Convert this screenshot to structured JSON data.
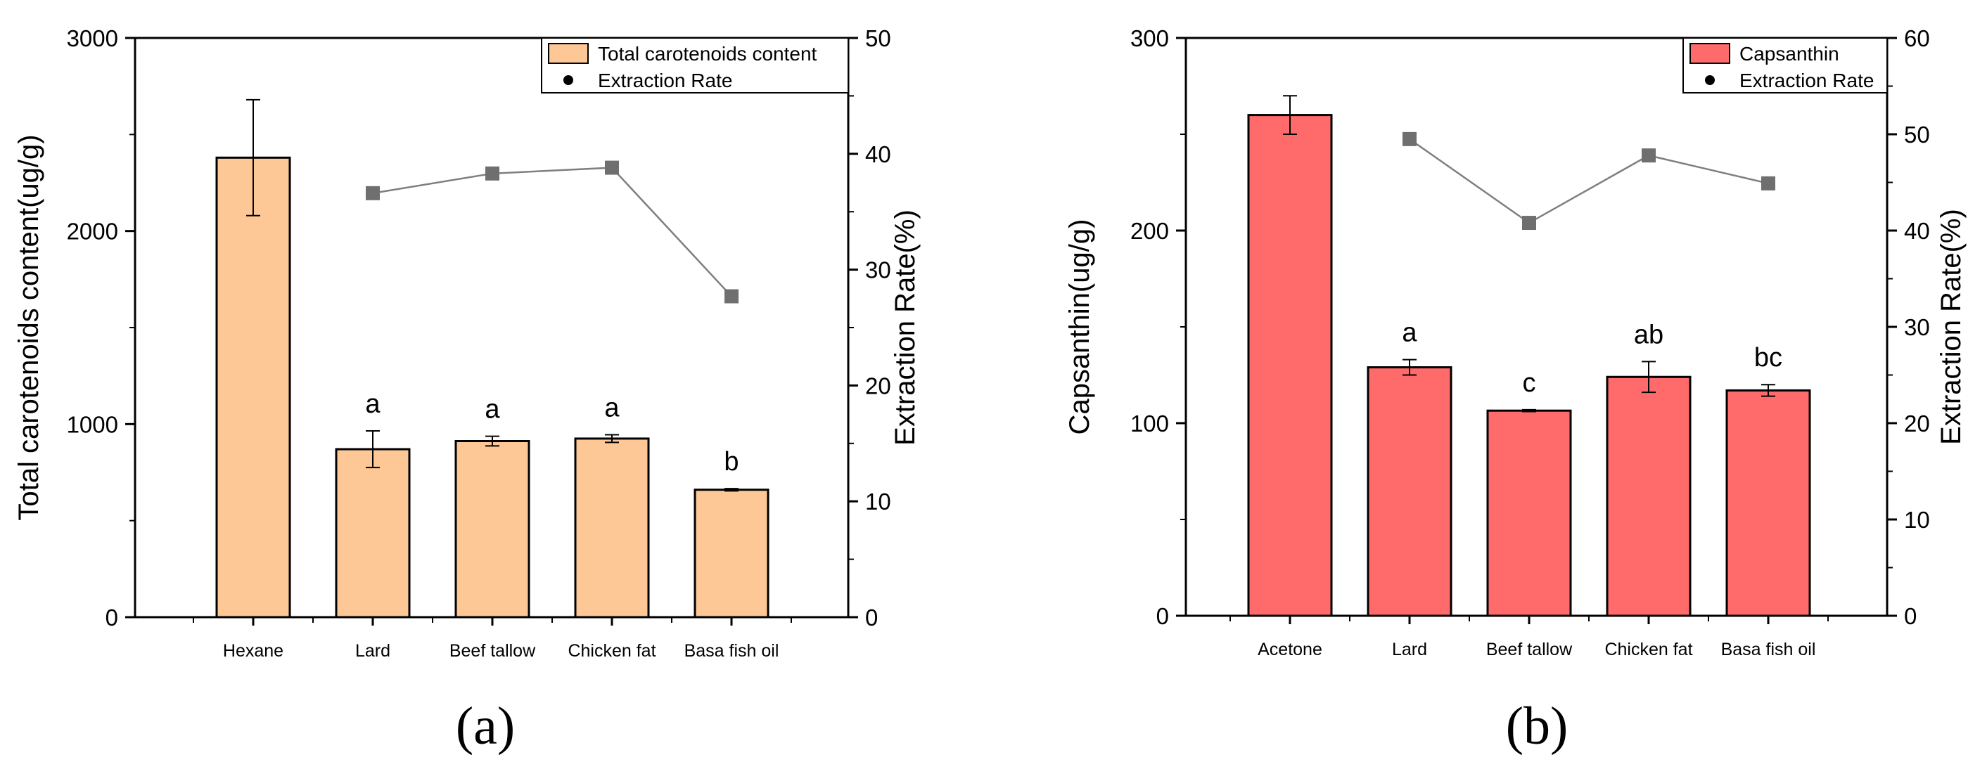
{
  "chart_data": [
    {
      "type": "bar",
      "panel_label": "(a)",
      "categories": [
        "Hexane",
        "Lard",
        "Beef tallow",
        "Chicken fat",
        "Basa fish oil"
      ],
      "bar_series": {
        "name": "Total carotenoids content",
        "values": [
          2380,
          870,
          912,
          925,
          660
        ],
        "errors": [
          300,
          95,
          25,
          20,
          6
        ],
        "color": "#FDC896",
        "significance_labels": [
          "",
          "a",
          "a",
          "a",
          "b"
        ]
      },
      "line_series": {
        "name": "Extraction Rate",
        "x_categories": [
          "Lard",
          "Beef tallow",
          "Chicken fat",
          "Basa fish oil"
        ],
        "values": [
          36.6,
          38.3,
          38.8,
          27.7
        ],
        "color": "#7F7F7F"
      },
      "ylabel": "Total carotenoids content(ug/g)",
      "ylim": [
        0,
        3000
      ],
      "yticks": [
        0,
        1000,
        2000,
        3000
      ],
      "y2label": "Extraction Rate(%)",
      "y2lim": [
        0,
        50
      ],
      "y2ticks": [
        0,
        10,
        20,
        30,
        40,
        50
      ],
      "legend": {
        "position": "top-right",
        "entries": [
          "Total carotenoids content",
          "Extraction Rate"
        ]
      }
    },
    {
      "type": "bar",
      "panel_label": "(b)",
      "categories": [
        "Acetone",
        "Lard",
        "Beef tallow",
        "Chicken fat",
        "Basa fish oil"
      ],
      "bar_series": {
        "name": "Capsanthin",
        "values": [
          260,
          129,
          106.5,
          124,
          117
        ],
        "errors": [
          10,
          4,
          0.5,
          8,
          3
        ],
        "color": "#FF6B6B",
        "significance_labels": [
          "",
          "a",
          "c",
          "ab",
          "bc"
        ]
      },
      "line_series": {
        "name": "Extraction Rate",
        "x_categories": [
          "Lard",
          "Beef tallow",
          "Chicken fat",
          "Basa fish oil"
        ],
        "values": [
          49.5,
          40.8,
          47.8,
          44.9
        ],
        "color": "#7F7F7F"
      },
      "ylabel": "Capsanthin(ug/g)",
      "ylim": [
        0,
        300
      ],
      "yticks": [
        0,
        100,
        200,
        300
      ],
      "y2label": "Extraction Rate(%)",
      "y2lim": [
        0,
        60
      ],
      "y2ticks": [
        0,
        10,
        20,
        30,
        40,
        50,
        60
      ],
      "legend": {
        "position": "top-right",
        "entries": [
          "Capsanthin",
          "Extraction Rate"
        ]
      }
    }
  ]
}
